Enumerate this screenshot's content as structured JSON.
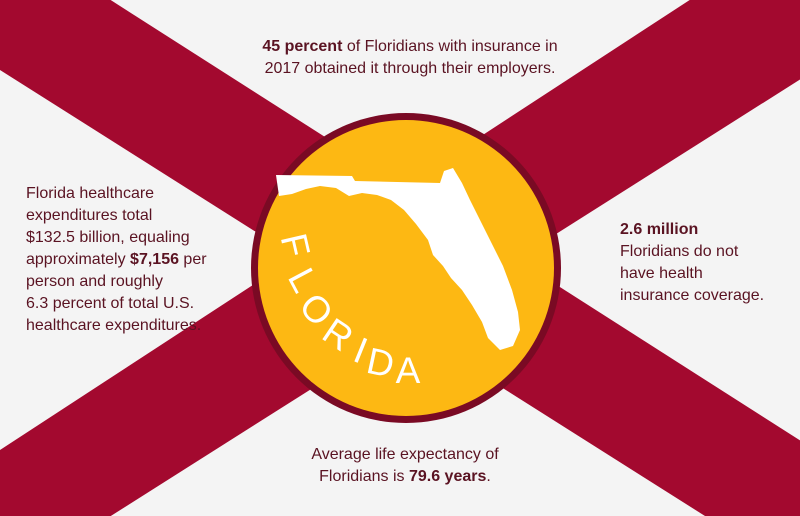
{
  "colors": {
    "background": "#f4f4f4",
    "saltire": "#a3092f",
    "seal_fill": "#fdb813",
    "seal_border": "#7a0a24",
    "text": "#5a1322",
    "state_shape": "#ffffff"
  },
  "seal": {
    "word": "FLORIDA",
    "letters": [
      "F",
      "L",
      "O",
      "R",
      "I",
      "D",
      "A"
    ]
  },
  "stats": {
    "top": {
      "bold": "45 percent",
      "line1_rest": " of Floridians with insurance in",
      "line2": "2017 obtained it through their employers."
    },
    "left": {
      "line1": "Florida healthcare",
      "line2": "expenditures total",
      "line3": "$132.5 billion, equaling",
      "line4_pre": "approximately ",
      "line4_bold": "$7,156",
      "line4_post": " per",
      "line5": "person and roughly",
      "line6": "6.3 percent of total U.S.",
      "line7": "healthcare expenditures."
    },
    "right": {
      "bold": "2.6 million",
      "line2": "Floridians do not",
      "line3": "have health",
      "line4": "insurance coverage."
    },
    "bottom": {
      "line1": "Average life expectancy of",
      "line2_pre": "Floridians is ",
      "line2_bold": "79.6 years",
      "line2_post": "."
    }
  }
}
